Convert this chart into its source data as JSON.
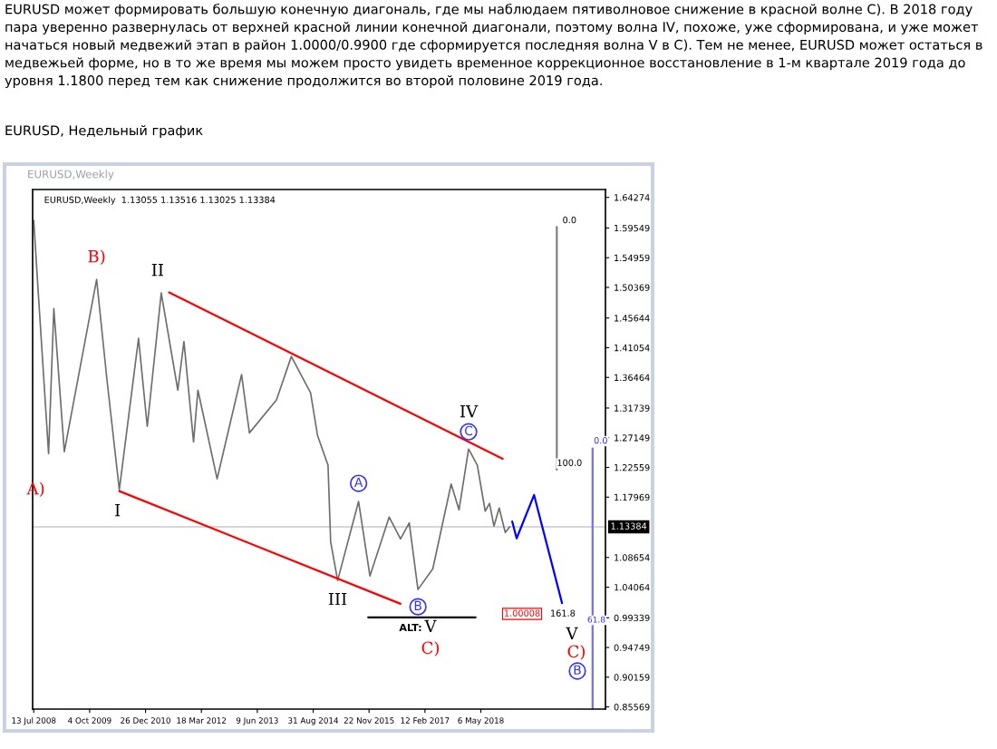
{
  "chart_data": {
    "type": "line",
    "title": "EURUSD может формировать большую конечную диагональ, где мы наблюдаем пятиволновое снижение в красной волне C). В 2018 году пара уверенно развернулась от верхней красной линии конечной диагонали, поэтому волна IV, похоже, уже сформирована, и уже может начаться новый медвежий этап в район 1.0000/0.9900 где сформируется последняя волна V в C). Тем не менее, EURUSD может остаться в медвежьей форме, но в то же время мы можем просто увидеть временное коррекционное восстановление в 1-м квартале 2019 года до уровня 1.1800 перед тем как снижение продолжится во второй половине 2019 года.",
    "subtitle": "EURUSD, Недельный график",
    "series": [
      {
        "color": "#6e6e6e",
        "x": [
          "2008-07-13",
          "2008-08-17",
          "2008-11-09",
          "2008-12-21",
          "2009-03-15",
          "2009-11-29",
          "2010-02-21",
          "2010-05-30",
          "2010-10-31",
          "2011-01-09",
          "2011-05-01",
          "2011-09-11",
          "2011-10-30",
          "2012-01-15",
          "2012-02-19",
          "2012-07-22",
          "2013-02-03",
          "2013-04-07",
          "2013-11-10",
          "2014-03-09",
          "2014-08-10",
          "2014-10-05",
          "2014-12-28",
          "2015-01-18",
          "2015-03-15",
          "2015-08-30",
          "2015-11-29",
          "2016-05-01",
          "2016-07-31",
          "2016-10-09",
          "2016-12-18",
          "2017-04-16",
          "2017-09-10",
          "2017-11-12",
          "2018-01-28",
          "2018-04-08",
          "2018-06-10",
          "2018-07-15",
          "2018-08-19",
          "2018-09-30",
          "2018-11-18",
          "2018-12-23"
        ],
        "values": [
          1.607,
          1.499,
          1.247,
          1.471,
          1.25,
          1.516,
          1.359,
          1.191,
          1.425,
          1.289,
          1.495,
          1.345,
          1.42,
          1.265,
          1.345,
          1.208,
          1.369,
          1.279,
          1.33,
          1.397,
          1.341,
          1.275,
          1.229,
          1.111,
          1.051,
          1.173,
          1.058,
          1.149,
          1.115,
          1.14,
          1.037,
          1.069,
          1.2,
          1.16,
          1.254,
          1.229,
          1.158,
          1.17,
          1.135,
          1.163,
          1.125,
          1.134
        ]
      },
      {
        "color": "#ff0000",
        "x": [
          "2011-07-03",
          "2018-10-28"
        ],
        "values": [
          1.496,
          1.239
        ]
      },
      {
        "color": "#ff0000",
        "x": [
          "2010-05-30",
          "2016-07-31"
        ],
        "values": [
          1.189,
          1.015
        ]
      },
      {
        "color": "#0000ff",
        "x": [
          "2019-01-13",
          "2019-02-17",
          "2019-07-07",
          "2020-02-16"
        ],
        "values": [
          1.142,
          1.116,
          1.183,
          1.016
        ]
      },
      {
        "color": "#000000",
        "x": [
          "2015-11-15",
          "2018-03-25"
        ],
        "values": [
          0.994,
          0.994
        ]
      },
      {
        "color": "#808080",
        "x": [
          "2020-01-05",
          "2020-01-05"
        ],
        "values": [
          1.597,
          1.222
        ]
      },
      {
        "color": "#7070ff",
        "x": [
          "2020-10-18",
          "2020-10-18"
        ],
        "values": [
          1.255,
          0.853
        ]
      }
    ],
    "annotations": [
      "EURUSD,Weekly",
      "EURUSD,Weekly  1.13055 1.13516 1.13025 1.13384",
      "1.00008",
      "161.8",
      "ALT:",
      "V",
      "C)",
      "V",
      "C)",
      "B",
      "61.8",
      {
        "text": "B)",
        "x": "2009-11-29",
        "y": 1.516
      },
      {
        "text": "II",
        "x": "2011-05-01",
        "y": 1.495
      },
      {
        "text": "A)",
        "x": "2008-11-09",
        "y": 1.247
      },
      {
        "text": "I",
        "x": "2010-05-30",
        "y": 1.191
      },
      {
        "text": "III",
        "x": "2015-03-15",
        "y": 1.051
      },
      {
        "text": "A",
        "x": "2015-08-30",
        "y": 1.173
      },
      {
        "text": "B",
        "x": "2016-12-18",
        "y": 1.037
      },
      {
        "text": "IV",
        "x": "2018-01-28",
        "y": 1.254
      },
      {
        "text": "C",
        "x": "2018-01-28",
        "y": 1.254
      },
      {
        "text": "0.0",
        "x": "2020-01-05",
        "y": 1.597
      },
      {
        "text": "100.0",
        "x": "2020-01-05",
        "y": 1.222
      },
      {
        "text": "0.0",
        "x": "2020-10-18",
        "y": 1.255
      }
    ],
    "ref_lines": [
      {
        "axis": "y",
        "value": 1.13384,
        "label": "1.13384",
        "color": "#c8c8c8"
      }
    ],
    "xlim": [
      "2008-07-04",
      "2021-01-29"
    ],
    "xticks": [
      {
        "value": "2008-07-13",
        "label": "13 Jul 2008"
      },
      {
        "value": "2009-10-04",
        "label": "4 Oct 2009"
      },
      {
        "value": "2010-12-26",
        "label": "26 Dec 2010"
      },
      {
        "value": "2012-03-18",
        "label": "18 Mar 2012"
      },
      {
        "value": "2013-06-09",
        "label": "9 Jun 2013"
      },
      {
        "value": "2014-08-31",
        "label": "31 Aug 2014"
      },
      {
        "value": "2015-11-22",
        "label": "22 Nov 2015"
      },
      {
        "value": "2017-02-12",
        "label": "12 Feb 2017"
      },
      {
        "value": "2018-05-06",
        "label": "6 May 2018"
      }
    ],
    "ylim": [
      0.8523,
      1.6549
    ],
    "yticks": [
      {
        "value": 1.64274,
        "label": "1.64274"
      },
      {
        "value": 1.59549,
        "label": "1.59549"
      },
      {
        "value": 1.54959,
        "label": "1.54959"
      },
      {
        "value": 1.50369,
        "label": "1.50369"
      },
      {
        "value": 1.45644,
        "label": "1.45644"
      },
      {
        "value": 1.41054,
        "label": "1.41054"
      },
      {
        "value": 1.36464,
        "label": "1.36464"
      },
      {
        "value": 1.31739,
        "label": "1.31739"
      },
      {
        "value": 1.27149,
        "label": "1.27149"
      },
      {
        "value": 1.22559,
        "label": "1.22559"
      },
      {
        "value": 1.17969,
        "label": "1.17969"
      },
      {
        "value": 1.08654,
        "label": "1.08654"
      },
      {
        "value": 1.04064,
        "label": "1.04064"
      },
      {
        "value": 0.99339,
        "label": "0.99339"
      },
      {
        "value": 0.94749,
        "label": "0.94749"
      },
      {
        "value": 0.90159,
        "label": "0.90159"
      },
      {
        "value": 0.85569,
        "label": "0.85569"
      }
    ],
    "grid": false,
    "legend": false
  }
}
